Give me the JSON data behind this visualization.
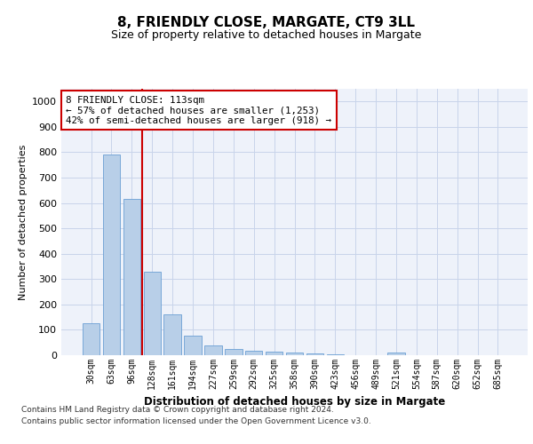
{
  "title": "8, FRIENDLY CLOSE, MARGATE, CT9 3LL",
  "subtitle": "Size of property relative to detached houses in Margate",
  "xlabel": "Distribution of detached houses by size in Margate",
  "ylabel": "Number of detached properties",
  "bar_color": "#b8cfe8",
  "bar_edge_color": "#6a9fd4",
  "categories": [
    "30sqm",
    "63sqm",
    "96sqm",
    "128sqm",
    "161sqm",
    "194sqm",
    "227sqm",
    "259sqm",
    "292sqm",
    "325sqm",
    "358sqm",
    "390sqm",
    "423sqm",
    "456sqm",
    "489sqm",
    "521sqm",
    "554sqm",
    "587sqm",
    "620sqm",
    "652sqm",
    "685sqm"
  ],
  "values": [
    125,
    790,
    615,
    328,
    162,
    78,
    40,
    25,
    18,
    15,
    10,
    8,
    5,
    0,
    0,
    10,
    0,
    0,
    0,
    0,
    0
  ],
  "ylim": [
    0,
    1050
  ],
  "yticks": [
    0,
    100,
    200,
    300,
    400,
    500,
    600,
    700,
    800,
    900,
    1000
  ],
  "property_line_x": 2.5,
  "annotation_line1": "8 FRIENDLY CLOSE: 113sqm",
  "annotation_line2": "← 57% of detached houses are smaller (1,253)",
  "annotation_line3": "42% of semi-detached houses are larger (918) →",
  "annotation_box_color": "#ffffff",
  "annotation_border_color": "#cc0000",
  "footer_line1": "Contains HM Land Registry data © Crown copyright and database right 2024.",
  "footer_line2": "Contains public sector information licensed under the Open Government Licence v3.0.",
  "red_line_color": "#cc0000",
  "plot_bg_color": "#eef2fa",
  "grid_color": "#c8d4ea"
}
